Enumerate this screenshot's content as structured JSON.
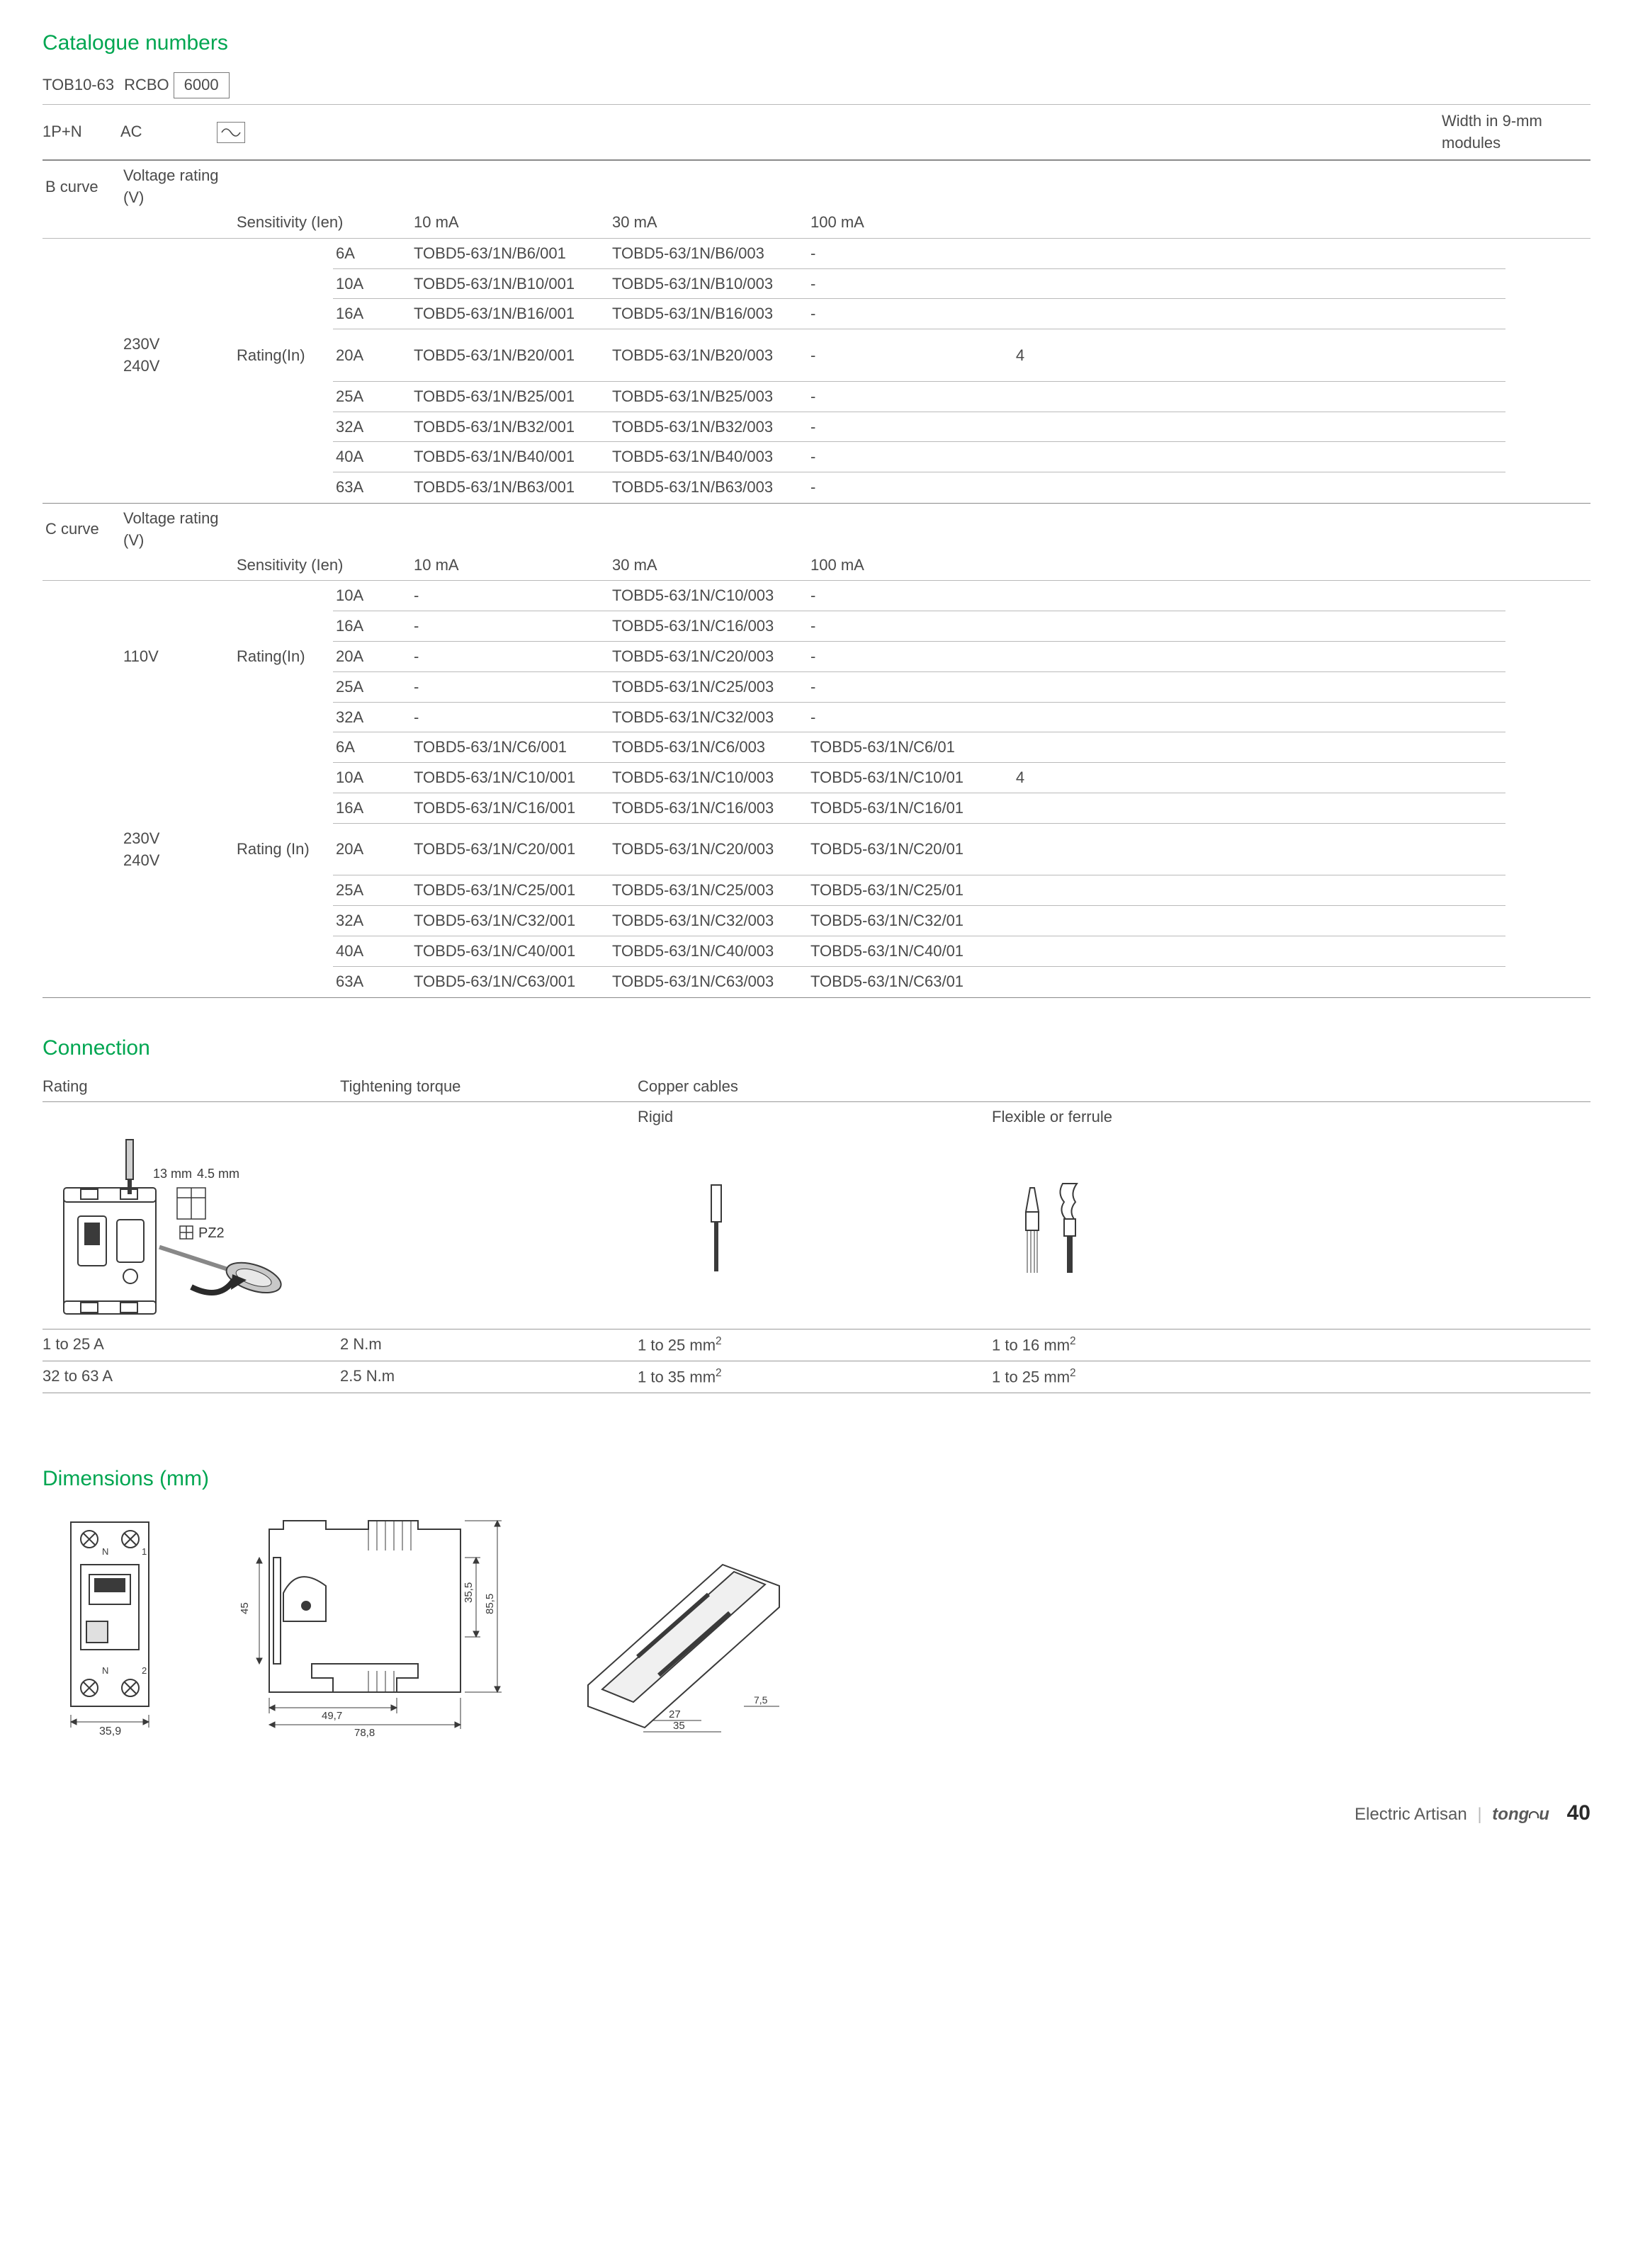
{
  "catalogue": {
    "title": "Catalogue numbers",
    "model": "TOB10-63",
    "type": "RCBO",
    "rating": "6000",
    "pole": "1P+N",
    "current_type": "AC",
    "width_label": "Width in 9-mm modules",
    "width_b": "4",
    "width_c": "4",
    "sens_label": "Sensitivity (Ien)",
    "sens_cols": [
      "10 mA",
      "30 mA",
      "100 mA"
    ],
    "voltage_label": "Voltage rating (V)",
    "rating_in_label": "Rating(In)",
    "rating_in_label2": "Rating (In)",
    "b_curve_label": "B curve",
    "c_curve_label": "C curve",
    "b_voltage": "230V 240V",
    "c_voltage_1": "110V",
    "c_voltage_2": "230V 240V",
    "b_rows": [
      {
        "a": "6A",
        "c1": "TOBD5-63/1N/B6/001",
        "c2": "TOBD5-63/1N/B6/003",
        "c3": "-"
      },
      {
        "a": "10A",
        "c1": "TOBD5-63/1N/B10/001",
        "c2": "TOBD5-63/1N/B10/003",
        "c3": "-"
      },
      {
        "a": "16A",
        "c1": "TOBD5-63/1N/B16/001",
        "c2": "TOBD5-63/1N/B16/003",
        "c3": "-"
      },
      {
        "a": "20A",
        "c1": "TOBD5-63/1N/B20/001",
        "c2": "TOBD5-63/1N/B20/003",
        "c3": "-"
      },
      {
        "a": "25A",
        "c1": "TOBD5-63/1N/B25/001",
        "c2": "TOBD5-63/1N/B25/003",
        "c3": "-"
      },
      {
        "a": "32A",
        "c1": "TOBD5-63/1N/B32/001",
        "c2": "TOBD5-63/1N/B32/003",
        "c3": "-"
      },
      {
        "a": "40A",
        "c1": "TOBD5-63/1N/B40/001",
        "c2": "TOBD5-63/1N/B40/003",
        "c3": "-"
      },
      {
        "a": "63A",
        "c1": "TOBD5-63/1N/B63/001",
        "c2": "TOBD5-63/1N/B63/003",
        "c3": "-"
      }
    ],
    "c1_rows": [
      {
        "a": "10A",
        "c1": "-",
        "c2": "TOBD5-63/1N/C10/003",
        "c3": "-"
      },
      {
        "a": "16A",
        "c1": "-",
        "c2": "TOBD5-63/1N/C16/003",
        "c3": "-"
      },
      {
        "a": "20A",
        "c1": "-",
        "c2": "TOBD5-63/1N/C20/003",
        "c3": "-"
      },
      {
        "a": "25A",
        "c1": "-",
        "c2": "TOBD5-63/1N/C25/003",
        "c3": "-"
      },
      {
        "a": "32A",
        "c1": "-",
        "c2": "TOBD5-63/1N/C32/003",
        "c3": "-"
      }
    ],
    "c2_rows": [
      {
        "a": "6A",
        "c1": "TOBD5-63/1N/C6/001",
        "c2": "TOBD5-63/1N/C6/003",
        "c3": "TOBD5-63/1N/C6/01"
      },
      {
        "a": "10A",
        "c1": "TOBD5-63/1N/C10/001",
        "c2": "TOBD5-63/1N/C10/003",
        "c3": "TOBD5-63/1N/C10/01"
      },
      {
        "a": "16A",
        "c1": "TOBD5-63/1N/C16/001",
        "c2": "TOBD5-63/1N/C16/003",
        "c3": "TOBD5-63/1N/C16/01"
      },
      {
        "a": "20A",
        "c1": "TOBD5-63/1N/C20/001",
        "c2": "TOBD5-63/1N/C20/003",
        "c3": "TOBD5-63/1N/C20/01"
      },
      {
        "a": "25A",
        "c1": "TOBD5-63/1N/C25/001",
        "c2": "TOBD5-63/1N/C25/003",
        "c3": "TOBD5-63/1N/C25/01"
      },
      {
        "a": "32A",
        "c1": "TOBD5-63/1N/C32/001",
        "c2": "TOBD5-63/1N/C32/003",
        "c3": "TOBD5-63/1N/C32/01"
      },
      {
        "a": "40A",
        "c1": "TOBD5-63/1N/C40/001",
        "c2": "TOBD5-63/1N/C40/003",
        "c3": "TOBD5-63/1N/C40/01"
      },
      {
        "a": "63A",
        "c1": "TOBD5-63/1N/C63/001",
        "c2": "TOBD5-63/1N/C63/003",
        "c3": "TOBD5-63/1N/C63/01"
      }
    ]
  },
  "connection": {
    "title": "Connection",
    "headers": [
      "Rating",
      "Tightening torque",
      "Copper cables",
      ""
    ],
    "subheaders": [
      "",
      "",
      "Rigid",
      "Flexible  or ferrule"
    ],
    "strip1": "13 mm",
    "strip2": "4.5 mm",
    "driver": "PZ2",
    "rows": [
      {
        "r": "1 to 25 A",
        "t": "2 N.m",
        "rg": "1 to 25 mm",
        "rf": "1 to 16 mm"
      },
      {
        "r": "32 to 63 A",
        "t": "2.5 N.m",
        "rg": "1 to 35 mm",
        "rf": "1 to 25 mm"
      }
    ]
  },
  "dimensions": {
    "title": "Dimensions (mm)",
    "front": {
      "w": "35,9",
      "labels": [
        "N",
        "1",
        "N",
        "2"
      ]
    },
    "side": {
      "d1": "45",
      "d2": "49,7",
      "d3": "78,8",
      "d4": "35,5",
      "d5": "85,5"
    },
    "rail": {
      "w1": "27",
      "w2": "35",
      "h": "7,5"
    }
  },
  "footer": {
    "tagline": "Electric Artisan",
    "brand": "tongou",
    "page": "40"
  },
  "colors": {
    "accent": "#00a651",
    "text": "#4a4a4a",
    "line": "#9a9a9a"
  }
}
